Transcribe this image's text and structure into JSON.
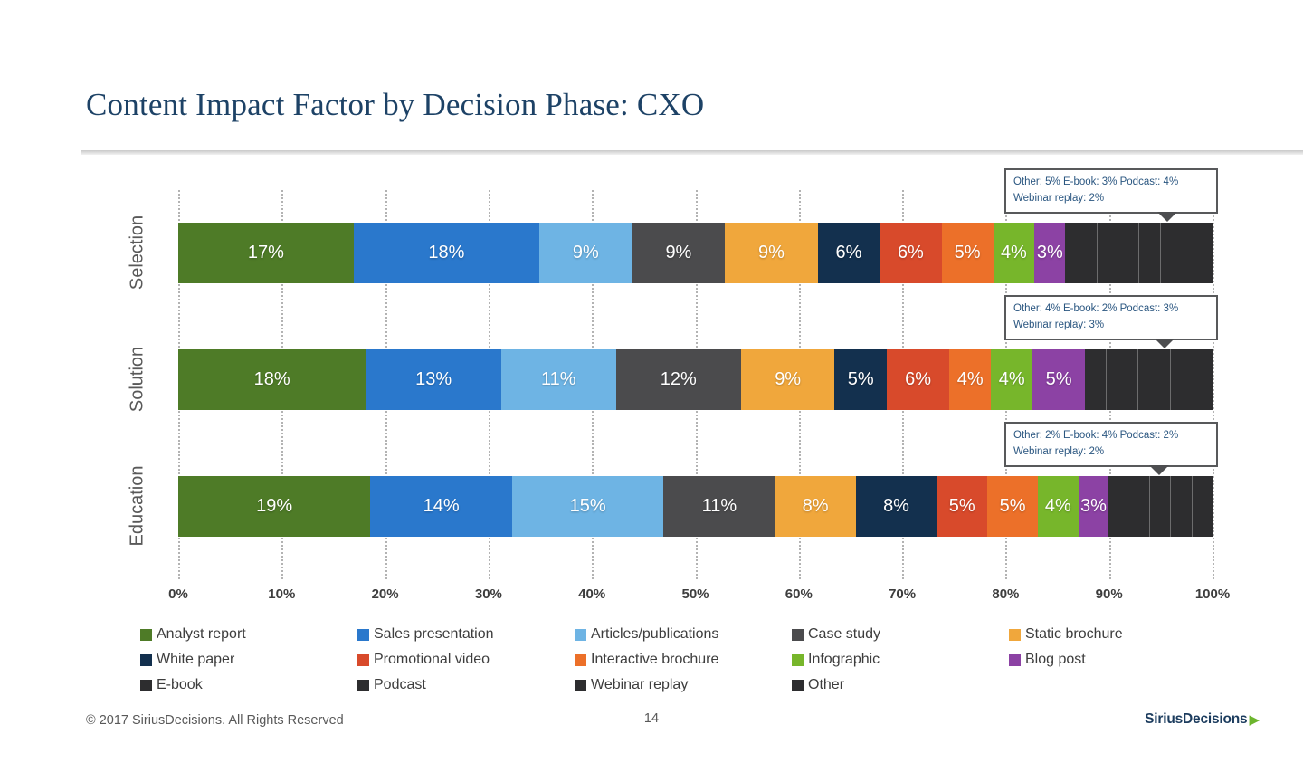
{
  "page": {
    "title": "Content Impact Factor by Decision Phase: CXO",
    "footer": {
      "copyright": "© 2017 SiriusDecisions. All Rights Reserved",
      "page_number": "14",
      "logo_text": "SiriusDecisions",
      "logo_arrow_color": "#6cb52d"
    }
  },
  "chart_data": {
    "type": "bar",
    "variant": "horizontal-stacked",
    "title": "Content Impact Factor by Decision Phase: CXO",
    "categories": [
      "Selection",
      "Solution",
      "Education"
    ],
    "series": [
      {
        "name": "Analyst report",
        "color": "#4e7b27",
        "values": [
          17,
          18,
          19
        ],
        "show_label": true
      },
      {
        "name": "Sales presentation",
        "color": "#2a78cc",
        "values": [
          18,
          13,
          14
        ],
        "show_label": true
      },
      {
        "name": "Articles/publications",
        "color": "#6eb4e4",
        "values": [
          9,
          11,
          15
        ],
        "show_label": true
      },
      {
        "name": "Case study",
        "color": "#4b4b4d",
        "values": [
          9,
          12,
          11
        ],
        "show_label": true
      },
      {
        "name": "Static brochure",
        "color": "#f0a73c",
        "values": [
          9,
          9,
          8
        ],
        "show_label": true
      },
      {
        "name": "White paper",
        "color": "#13304e",
        "values": [
          6,
          5,
          8
        ],
        "show_label": true
      },
      {
        "name": "Promotional video",
        "color": "#d84a2b",
        "values": [
          6,
          6,
          5
        ],
        "show_label": true
      },
      {
        "name": "Interactive brochure",
        "color": "#ec7029",
        "values": [
          5,
          4,
          5
        ],
        "show_label": true
      },
      {
        "name": "Infographic",
        "color": "#77b62b",
        "values": [
          4,
          4,
          4
        ],
        "show_label": true
      },
      {
        "name": "Blog post",
        "color": "#8c42a4",
        "values": [
          3,
          5,
          3
        ],
        "show_label": true
      },
      {
        "name": "E-book",
        "color": "#2d2d2f",
        "values": [
          3,
          2,
          4
        ],
        "show_label": false,
        "dark_group": true
      },
      {
        "name": "Podcast",
        "color": "#2d2d2f",
        "values": [
          4,
          3,
          2
        ],
        "show_label": false,
        "dark_group": true
      },
      {
        "name": "Webinar replay",
        "color": "#2d2d2f",
        "values": [
          2,
          3,
          2
        ],
        "show_label": false,
        "dark_group": true
      },
      {
        "name": "Other",
        "color": "#2d2d2f",
        "values": [
          5,
          4,
          2
        ],
        "show_label": false,
        "dark_group": true
      }
    ],
    "x_ticks": [
      "0%",
      "10%",
      "20%",
      "30%",
      "40%",
      "50%",
      "60%",
      "70%",
      "80%",
      "90%",
      "100%"
    ],
    "xlim": [
      0,
      100
    ],
    "grid": "dotted-vertical",
    "legend_position": "bottom",
    "label_unit": "%",
    "callouts": [
      {
        "category": "Selection",
        "text": "Other: 5%  E-book: 3% Podcast: 4% Webinar replay: 2%",
        "pointer_pct": 95.8
      },
      {
        "category": "Solution",
        "text": "Other: 4%  E-book: 2% Podcast: 3% Webinar replay: 3%",
        "pointer_pct": 95.5
      },
      {
        "category": "Education",
        "text": "Other: 2% E-book: 4%  Podcast: 2% Webinar replay: 2%",
        "pointer_pct": 95.0
      }
    ]
  }
}
